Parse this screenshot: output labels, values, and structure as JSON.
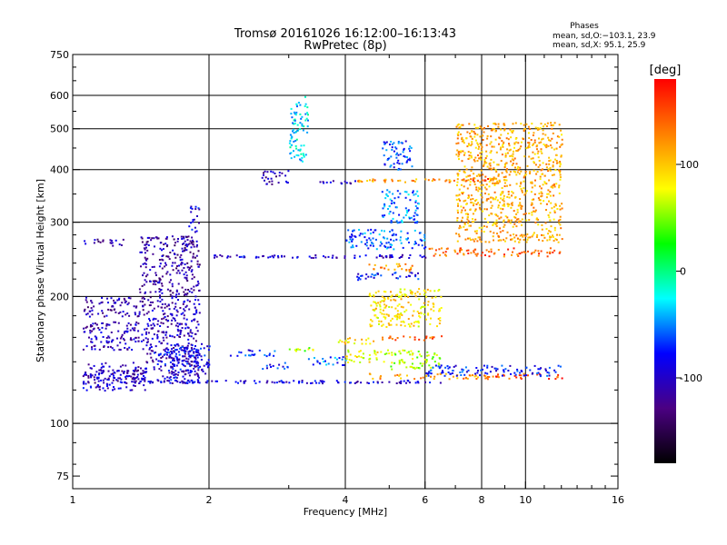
{
  "chart_data": {
    "type": "scatter",
    "title": "Tromsø 20161026 16:12:00–16:13:43",
    "subtitle": "RwPretec (8p)",
    "xlabel": "Frequency [MHz]",
    "ylabel": "Stationary phase Virtual Height [km]",
    "x_scale": "log",
    "y_scale": "log",
    "xlim": [
      1,
      16
    ],
    "ylim": [
      70,
      750
    ],
    "x_ticks": [
      1,
      2,
      4,
      6,
      8,
      10,
      16
    ],
    "y_ticks": [
      75,
      100,
      200,
      300,
      400,
      500,
      600,
      750
    ],
    "y_grid": [
      100,
      200,
      300,
      400,
      500,
      600
    ],
    "grid": true,
    "legend": {
      "title": "Phases",
      "lines": [
        "mean, sd,O:−103.1, 23.9",
        "mean, sd,X:  95.1, 25.9"
      ]
    },
    "colorbar": {
      "label": "[deg]",
      "range": [
        -180,
        180
      ],
      "ticks": [
        100,
        0,
        -100
      ],
      "colors": [
        "#000000",
        "#4b0082",
        "#0000ff",
        "#00ffff",
        "#00ff00",
        "#ffff00",
        "#ff8000",
        "#ff0000"
      ]
    },
    "series": [
      {
        "x": [
          1.05,
          1.45
        ],
        "y": [
          120,
          140
        ],
        "phase": -100
      },
      {
        "x": [
          1.45,
          1.9
        ],
        "y": [
          140,
          200
        ],
        "phase": -105
      },
      {
        "x": [
          1.05,
          1.45
        ],
        "y": [
          125,
          135
        ],
        "phase": -110
      },
      {
        "x": [
          1.05,
          1.45
        ],
        "y": [
          150,
          175
        ],
        "phase": -105
      },
      {
        "x": [
          1.05,
          1.45
        ],
        "y": [
          180,
          200
        ],
        "phase": -110
      },
      {
        "x": [
          1.4,
          1.9
        ],
        "y": [
          200,
          280
        ],
        "phase": -115
      },
      {
        "x": [
          1.05,
          1.3
        ],
        "y": [
          265,
          275
        ],
        "phase": -115
      },
      {
        "x": [
          1.8,
          1.9
        ],
        "y": [
          285,
          330
        ],
        "phase": -90
      },
      {
        "x": [
          1.5,
          1.9
        ],
        "y": [
          125,
          150
        ],
        "phase": -90
      },
      {
        "x": [
          1.4,
          6.5
        ],
        "y": [
          125,
          127
        ],
        "phase": -95
      },
      {
        "x": [
          1.6,
          2.0
        ],
        "y": [
          130,
          145
        ],
        "phase": -100
      },
      {
        "x": [
          1.6,
          2.0
        ],
        "y": [
          145,
          155
        ],
        "phase": -80
      },
      {
        "x": [
          2.2,
          2.8
        ],
        "y": [
          145,
          150
        ],
        "phase": -75
      },
      {
        "x": [
          2.6,
          3.0
        ],
        "y": [
          135,
          140
        ],
        "phase": -80
      },
      {
        "x": [
          2.0,
          3.2
        ],
        "y": [
          248,
          252
        ],
        "phase": -90
      },
      {
        "x": [
          3.3,
          6.0
        ],
        "y": [
          248,
          252
        ],
        "phase": -100
      },
      {
        "x": [
          3.0,
          3.4
        ],
        "y": [
          148,
          152
        ],
        "phase": 60
      },
      {
        "x": [
          3.3,
          4.0
        ],
        "y": [
          138,
          145
        ],
        "phase": -60
      },
      {
        "x": [
          3.8,
          4.6
        ],
        "y": [
          155,
          162
        ],
        "phase": 90
      },
      {
        "x": [
          4.8,
          6.5
        ],
        "y": [
          158,
          162
        ],
        "phase": 140
      },
      {
        "x": [
          4.0,
          5.0
        ],
        "y": [
          140,
          150
        ],
        "phase": 80
      },
      {
        "x": [
          5.0,
          6.5
        ],
        "y": [
          135,
          150
        ],
        "phase": 60
      },
      {
        "x": [
          4.5,
          8.5
        ],
        "y": [
          128,
          132
        ],
        "phase": 120
      },
      {
        "x": [
          8.5,
          12.0
        ],
        "y": [
          128,
          132
        ],
        "phase": 150
      },
      {
        "x": [
          6.0,
          12.0
        ],
        "y": [
          130,
          138
        ],
        "phase": -80
      },
      {
        "x": [
          3.5,
          4.2
        ],
        "y": [
          372,
          378
        ],
        "phase": -100
      },
      {
        "x": [
          4.2,
          7.5
        ],
        "y": [
          375,
          382
        ],
        "phase": 120
      },
      {
        "x": [
          7.5,
          8.5
        ],
        "y": [
          378,
          384
        ],
        "phase": 150
      },
      {
        "x": [
          4.2,
          5.8
        ],
        "y": [
          220,
          230
        ],
        "phase": -80
      },
      {
        "x": [
          4.5,
          5.6
        ],
        "y": [
          230,
          240
        ],
        "phase": 120
      },
      {
        "x": [
          4.0,
          6.0
        ],
        "y": [
          260,
          290
        ],
        "phase": -60
      },
      {
        "x": [
          4.8,
          5.6
        ],
        "y": [
          400,
          470
        ],
        "phase": -70
      },
      {
        "x": [
          4.8,
          5.8
        ],
        "y": [
          300,
          360
        ],
        "phase": -50
      },
      {
        "x": [
          6.0,
          12.0
        ],
        "y": [
          250,
          262
        ],
        "phase": 140
      },
      {
        "x": [
          3.0,
          3.3
        ],
        "y": [
          420,
          600
        ],
        "phase": -30
      },
      {
        "x": [
          2.6,
          3.0
        ],
        "y": [
          370,
          400
        ],
        "phase": -110
      },
      {
        "x": [
          4.5,
          6.5
        ],
        "y": [
          170,
          210
        ],
        "phase": 90
      },
      {
        "x": [
          7.0,
          12.0
        ],
        "y": [
          270,
          520
        ],
        "phase": 110
      }
    ]
  }
}
